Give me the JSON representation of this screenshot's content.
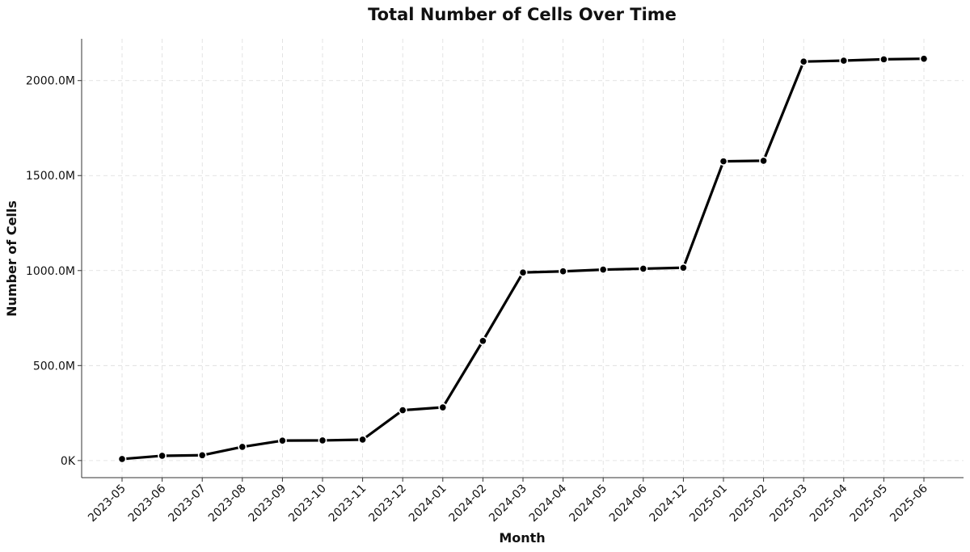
{
  "chart_data": {
    "type": "line",
    "title": "Total Number of Cells Over Time",
    "xlabel": "Month",
    "ylabel": "Number of Cells",
    "grid": true,
    "ylim": [
      -90,
      2220
    ],
    "y_ticks": [
      {
        "value": 0,
        "label": "0K"
      },
      {
        "value": 500,
        "label": "500.0M"
      },
      {
        "value": 1000,
        "label": "1000.0M"
      },
      {
        "value": 1500,
        "label": "1500.0M"
      },
      {
        "value": 2000,
        "label": "2000.0M"
      }
    ],
    "y_unit": "millions of cells",
    "categories": [
      "2023-05",
      "2023-06",
      "2023-07",
      "2023-08",
      "2023-09",
      "2023-10",
      "2023-11",
      "2023-12",
      "2024-01",
      "2024-02",
      "2024-03",
      "2024-04",
      "2024-05",
      "2024-06",
      "2024-12",
      "2025-01",
      "2025-02",
      "2025-03",
      "2025-04",
      "2025-05",
      "2025-06"
    ],
    "series": [
      {
        "name": "Total Number of Cells",
        "color": "#000000",
        "values": [
          8,
          25,
          28,
          72,
          105,
          106,
          110,
          265,
          280,
          630,
          990,
          996,
          1005,
          1010,
          1015,
          1575,
          1578,
          2100,
          2105,
          2112,
          2115
        ]
      }
    ]
  }
}
